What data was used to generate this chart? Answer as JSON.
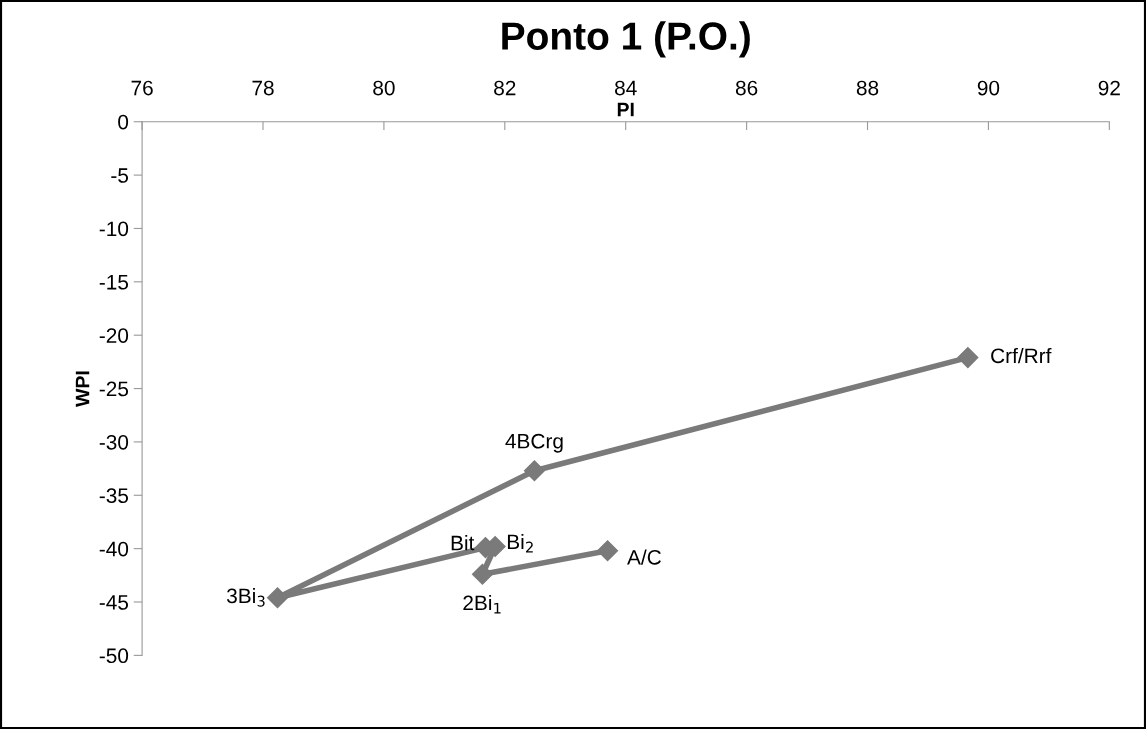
{
  "chart_data": {
    "type": "line",
    "title": "Ponto 1 (P.O.)",
    "xlabel": "PI",
    "ylabel": "WPI",
    "series": [
      {
        "color": "#7a7a7a",
        "x": [
          83.7,
          81.63,
          81.84,
          81.68,
          78.24,
          82.49,
          89.66
        ],
        "values": [
          -40.2,
          -42.4,
          -39.8,
          -39.9,
          -44.6,
          -32.7,
          -22.1
        ]
      }
    ],
    "annotations": [
      {
        "text": "A/C",
        "x": 83.7,
        "y": -40.2
      },
      {
        "text": "2Bi$_{1}$",
        "x": 81.63,
        "y": -42.4
      },
      {
        "text": "Bi$_{2}$",
        "x": 81.84,
        "y": -39.8
      },
      {
        "text": "Bit",
        "x": 81.68,
        "y": -39.9
      },
      {
        "text": "3Bi$_{3}$",
        "x": 78.24,
        "y": -44.6
      },
      {
        "text": "4BCrg",
        "x": 82.49,
        "y": -32.7
      },
      {
        "text": "Crf/Rrf",
        "x": 89.66,
        "y": -22.1
      }
    ],
    "xlim": [
      76,
      92
    ],
    "xticks": [
      76,
      78,
      80,
      82,
      84,
      86,
      88,
      90,
      92
    ],
    "ylim": [
      -50,
      0
    ],
    "yticks": [
      -50,
      -45,
      -40,
      -35,
      -30,
      -25,
      -20,
      -15,
      -10,
      -5,
      0
    ],
    "grid": false,
    "legend": false,
    "marker": "diamond",
    "line_style": "solid"
  }
}
